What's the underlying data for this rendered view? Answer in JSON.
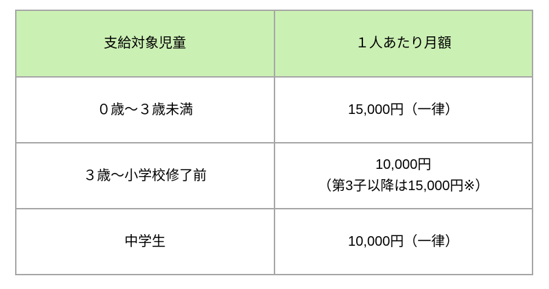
{
  "table": {
    "columns": [
      {
        "label": "支給対象児童"
      },
      {
        "label": "１人あたり月額"
      }
    ],
    "rows": [
      {
        "target": "０歳～３歳未満",
        "amount_line1": "15,000円（一律）",
        "amount_line2": ""
      },
      {
        "target": "３歳～小学校修了前",
        "amount_line1": "10,000円",
        "amount_line2": "（第3子以降は15,000円※）"
      },
      {
        "target": "中学生",
        "amount_line1": "10,000円（一律）",
        "amount_line2": ""
      }
    ],
    "colors": {
      "header_bg": "#cbf0b4",
      "border": "#a6a6a6",
      "text": "#000000",
      "page_bg": "#ffffff"
    }
  }
}
